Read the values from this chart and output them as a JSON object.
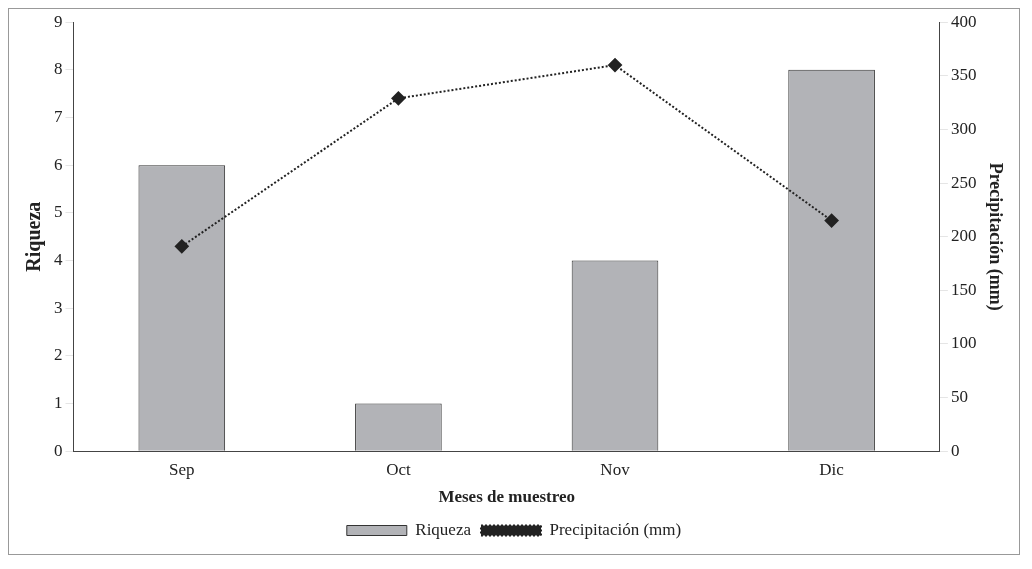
{
  "chart_data": {
    "type": "bar",
    "xlabel": "Meses de muestreo",
    "ylabel": "Riqueza",
    "y2label": "Precipitación (mm)",
    "categories": [
      "Sep",
      "Oct",
      "Nov",
      "Dic"
    ],
    "series": [
      {
        "name": "Riqueza",
        "color": "#b2b3b7",
        "values": [
          6,
          1,
          4,
          8
        ]
      },
      {
        "name": "Precipitación (mm)",
        "type": "line",
        "axis": "y2",
        "color": "#222222",
        "marker": "diamond",
        "line_style": "dotted",
        "values": [
          191,
          329,
          360,
          215
        ]
      }
    ],
    "ylim": [
      0,
      9
    ],
    "yticks": [
      0,
      1,
      2,
      3,
      4,
      5,
      6,
      7,
      8,
      9
    ],
    "y2lim": [
      0,
      400
    ],
    "y2ticks": [
      0,
      50,
      100,
      150,
      200,
      250,
      300,
      350,
      400
    ],
    "grid": false,
    "legend": "bottom"
  }
}
